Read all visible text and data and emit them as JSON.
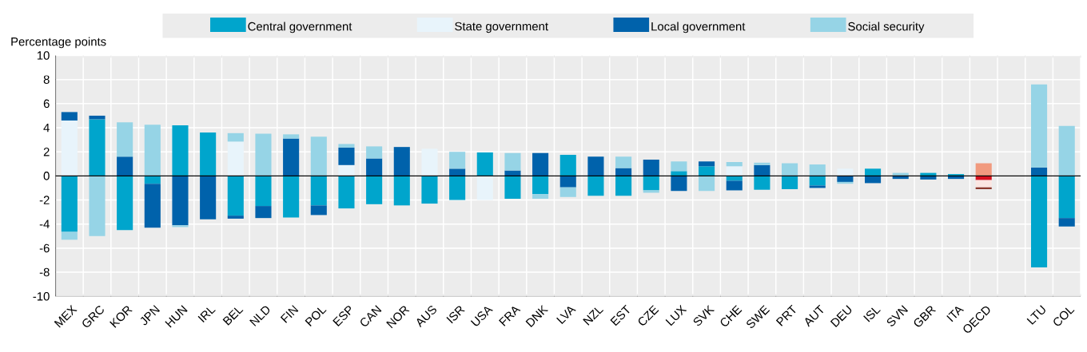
{
  "chart_data": {
    "type": "bar",
    "stacked": true,
    "ylabel": "Percentage points",
    "legend": "top",
    "grid": true,
    "categories": [
      "MEX",
      "GRC",
      "KOR",
      "JPN",
      "HUN",
      "IRL",
      "BEL",
      "NLD",
      "FIN",
      "POL",
      "ESP",
      "CAN",
      "NOR",
      "AUS",
      "ISR",
      "USA",
      "FRA",
      "DNK",
      "LVA",
      "NZL",
      "EST",
      "CZE",
      "LUX",
      "SVK",
      "CHE",
      "SWE",
      "PRT",
      "AUT",
      "DEU",
      "ISL",
      "SVN",
      "GBR",
      "ITA",
      "OECD",
      null,
      "LTU",
      "COL"
    ],
    "ylim": [
      -10,
      10
    ],
    "yticks": [
      -10,
      -8,
      -6,
      -4,
      -2,
      0,
      2,
      4,
      6,
      8,
      10
    ],
    "series": [
      {
        "name": "Central government",
        "color": "#00a5cc",
        "values": [
          -4.65,
          4.7,
          -4.5,
          -0.65,
          4.2,
          3.6,
          -3.3,
          -2.5,
          -3.45,
          -2.45,
          -2.7,
          -2.35,
          -2.45,
          -2.3,
          -2.0,
          1.95,
          -1.9,
          -1.5,
          1.75,
          -1.65,
          -1.65,
          -1.2,
          0.4,
          0.8,
          -0.4,
          -1.15,
          -1.1,
          -0.8,
          null,
          0.6,
          null,
          0.25,
          0.15,
          -0.35,
          null,
          -7.6,
          -3.5
        ],
        "colors": [
          "#00a5cc",
          "#00a5cc",
          "#00a5cc",
          "#00a5cc",
          "#00a5cc",
          "#00a5cc",
          "#00a5cc",
          "#00a5cc",
          "#00a5cc",
          "#00a5cc",
          "#00a5cc",
          "#00a5cc",
          "#00a5cc",
          "#00a5cc",
          "#00a5cc",
          "#00a5cc",
          "#00a5cc",
          "#00a5cc",
          "#00a5cc",
          "#00a5cc",
          "#00a5cc",
          "#00a5cc",
          "#00a5cc",
          "#00a5cc",
          "#00a5cc",
          "#00a5cc",
          "#00a5cc",
          "#00a5cc",
          "#00a5cc",
          "#00a5cc",
          "#00a5cc",
          "#00a5cc",
          "#00a5cc",
          "#d7101e",
          null,
          "#00a5cc",
          "#00a5cc"
        ]
      },
      {
        "name": "State government",
        "color": "#e8f4fb",
        "values": [
          4.6,
          null,
          null,
          null,
          null,
          null,
          2.85,
          null,
          null,
          null,
          0.9,
          null,
          null,
          2.25,
          null,
          -2.0,
          null,
          null,
          null,
          null,
          null,
          null,
          null,
          null,
          0.8,
          null,
          null,
          null,
          0.6,
          null,
          null,
          null,
          null,
          -0.6,
          null,
          null,
          null
        ],
        "colors": [
          "#e8f4fb",
          "#e8f4fb",
          "#e8f4fb",
          "#e8f4fb",
          "#e8f4fb",
          "#e8f4fb",
          "#e8f4fb",
          "#e8f4fb",
          "#e8f4fb",
          "#e8f4fb",
          "#e8f4fb",
          "#e8f4fb",
          "#e8f4fb",
          "#e8f4fb",
          "#e8f4fb",
          "#e8f4fb",
          "#e8f4fb",
          "#e8f4fb",
          "#e8f4fb",
          "#e8f4fb",
          "#e8f4fb",
          "#e8f4fb",
          "#e8f4fb",
          "#e8f4fb",
          "#e8f4fb",
          "#e8f4fb",
          "#e8f4fb",
          "#e8f4fb",
          "#e8f4fb",
          "#e8f4fb",
          "#e8f4fb",
          "#e8f4fb",
          "#e8f4fb",
          "#fbe6e2",
          null,
          "#e8f4fb",
          "#e8f4fb"
        ]
      },
      {
        "name": "Local government",
        "color": "#0062ab",
        "values": [
          0.7,
          0.3,
          1.6,
          -3.65,
          -4.1,
          -3.6,
          -0.25,
          -1.0,
          3.1,
          -0.8,
          1.45,
          1.45,
          2.4,
          null,
          0.6,
          null,
          0.45,
          1.9,
          -0.95,
          1.6,
          0.65,
          1.35,
          -1.25,
          0.4,
          -0.8,
          0.9,
          null,
          -0.2,
          -0.5,
          -0.6,
          -0.25,
          -0.3,
          -0.25,
          -0.15,
          null,
          0.7,
          -0.7
        ],
        "colors": [
          "#0062ab",
          "#0062ab",
          "#0062ab",
          "#0062ab",
          "#0062ab",
          "#0062ab",
          "#0062ab",
          "#0062ab",
          "#0062ab",
          "#0062ab",
          "#0062ab",
          "#0062ab",
          "#0062ab",
          "#0062ab",
          "#0062ab",
          "#0062ab",
          "#0062ab",
          "#0062ab",
          "#0062ab",
          "#0062ab",
          "#0062ab",
          "#0062ab",
          "#0062ab",
          "#0062ab",
          "#0062ab",
          "#0062ab",
          "#0062ab",
          "#0062ab",
          "#0062ab",
          "#0062ab",
          "#0062ab",
          "#0062ab",
          "#0062ab",
          "#8b3a2f",
          null,
          "#0062ab",
          "#0062ab"
        ]
      },
      {
        "name": "Social security",
        "color": "#96d4e6",
        "values": [
          -0.65,
          -5.0,
          2.85,
          4.25,
          -0.15,
          null,
          0.7,
          3.5,
          0.35,
          3.25,
          0.3,
          1.0,
          null,
          null,
          1.4,
          null,
          1.45,
          -0.4,
          -0.8,
          null,
          0.95,
          -0.2,
          0.8,
          -1.25,
          0.35,
          0.2,
          1.05,
          0.95,
          -0.15,
          null,
          0.25,
          null,
          null,
          1.05,
          null,
          6.9,
          4.15
        ],
        "colors": [
          "#96d4e6",
          "#96d4e6",
          "#96d4e6",
          "#96d4e6",
          "#96d4e6",
          "#96d4e6",
          "#96d4e6",
          "#96d4e6",
          "#96d4e6",
          "#96d4e6",
          "#96d4e6",
          "#96d4e6",
          "#96d4e6",
          "#96d4e6",
          "#96d4e6",
          "#96d4e6",
          "#96d4e6",
          "#96d4e6",
          "#96d4e6",
          "#96d4e6",
          "#96d4e6",
          "#96d4e6",
          "#96d4e6",
          "#96d4e6",
          "#96d4e6",
          "#96d4e6",
          "#96d4e6",
          "#96d4e6",
          "#96d4e6",
          "#96d4e6",
          "#96d4e6",
          "#96d4e6",
          "#96d4e6",
          "#f19a7e",
          null,
          "#96d4e6",
          "#96d4e6"
        ]
      }
    ]
  }
}
